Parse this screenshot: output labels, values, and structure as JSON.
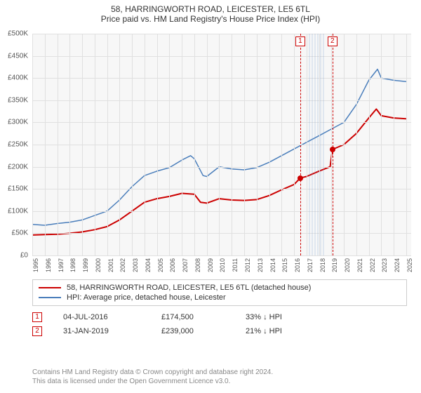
{
  "title": "58, HARRINGWORTH ROAD, LEICESTER, LE5 6TL",
  "subtitle": "Price paid vs. HM Land Registry's House Price Index (HPI)",
  "chart": {
    "type": "line",
    "background_color": "#f7f7f7",
    "grid_color": "#e0e0e0",
    "y": {
      "min": 0,
      "max": 500000,
      "tick_step": 50000,
      "tick_format_prefix": "£",
      "tick_format_suffix": "K",
      "ticks": [
        "£0",
        "£50K",
        "£100K",
        "£150K",
        "£200K",
        "£250K",
        "£300K",
        "£350K",
        "£400K",
        "£450K",
        "£500K"
      ]
    },
    "x": {
      "years": [
        1995,
        1996,
        1997,
        1998,
        1999,
        2000,
        2001,
        2002,
        2003,
        2004,
        2005,
        2006,
        2007,
        2008,
        2009,
        2010,
        2011,
        2012,
        2013,
        2014,
        2015,
        2016,
        2017,
        2018,
        2019,
        2020,
        2021,
        2022,
        2023,
        2024,
        2025
      ],
      "min": 1995,
      "max": 2025.4
    },
    "hatch_band": {
      "x_start": 2017.2,
      "x_end": 2018.5,
      "color": "rgba(120,160,210,0.18)"
    },
    "series": [
      {
        "name": "property",
        "label": "58, HARRINGWORTH ROAD, LEICESTER, LE5 6TL (detached house)",
        "color": "#cc0000",
        "line_width": 2,
        "points": [
          [
            1995,
            46000
          ],
          [
            1996,
            47000
          ],
          [
            1997,
            48000
          ],
          [
            1998,
            50000
          ],
          [
            1999,
            53000
          ],
          [
            2000,
            58000
          ],
          [
            2001,
            65000
          ],
          [
            2002,
            80000
          ],
          [
            2003,
            100000
          ],
          [
            2004,
            120000
          ],
          [
            2005,
            128000
          ],
          [
            2006,
            133000
          ],
          [
            2007,
            140000
          ],
          [
            2008,
            138000
          ],
          [
            2008.5,
            120000
          ],
          [
            2009,
            118000
          ],
          [
            2010,
            128000
          ],
          [
            2011,
            125000
          ],
          [
            2012,
            124000
          ],
          [
            2013,
            126000
          ],
          [
            2014,
            135000
          ],
          [
            2015,
            148000
          ],
          [
            2016,
            160000
          ],
          [
            2016.5,
            174500
          ],
          [
            2017,
            178000
          ],
          [
            2018,
            190000
          ],
          [
            2018.9,
            200000
          ],
          [
            2019.08,
            239000
          ],
          [
            2020,
            250000
          ],
          [
            2021,
            275000
          ],
          [
            2022,
            310000
          ],
          [
            2022.6,
            330000
          ],
          [
            2023,
            315000
          ],
          [
            2024,
            310000
          ],
          [
            2025,
            308000
          ]
        ]
      },
      {
        "name": "hpi",
        "label": "HPI: Average price, detached house, Leicester",
        "color": "#4a7ebb",
        "line_width": 1.5,
        "points": [
          [
            1995,
            70000
          ],
          [
            1996,
            68000
          ],
          [
            1997,
            72000
          ],
          [
            1998,
            75000
          ],
          [
            1999,
            80000
          ],
          [
            2000,
            90000
          ],
          [
            2001,
            100000
          ],
          [
            2002,
            125000
          ],
          [
            2003,
            155000
          ],
          [
            2004,
            180000
          ],
          [
            2005,
            190000
          ],
          [
            2006,
            198000
          ],
          [
            2007,
            215000
          ],
          [
            2007.7,
            225000
          ],
          [
            2008,
            218000
          ],
          [
            2008.7,
            180000
          ],
          [
            2009,
            178000
          ],
          [
            2010,
            200000
          ],
          [
            2011,
            195000
          ],
          [
            2012,
            193000
          ],
          [
            2013,
            198000
          ],
          [
            2014,
            210000
          ],
          [
            2015,
            225000
          ],
          [
            2016,
            240000
          ],
          [
            2017,
            255000
          ],
          [
            2018,
            270000
          ],
          [
            2019,
            285000
          ],
          [
            2020,
            300000
          ],
          [
            2021,
            340000
          ],
          [
            2022,
            395000
          ],
          [
            2022.7,
            420000
          ],
          [
            2023,
            400000
          ],
          [
            2024,
            395000
          ],
          [
            2025,
            392000
          ]
        ]
      }
    ],
    "markers": [
      {
        "x": 2016.5,
        "y": 174500,
        "color": "#cc0000"
      },
      {
        "x": 2019.08,
        "y": 239000,
        "color": "#cc0000"
      }
    ],
    "event_lines": [
      {
        "n": "1",
        "x": 2016.5,
        "color": "#cc0000"
      },
      {
        "n": "2",
        "x": 2019.08,
        "color": "#cc0000"
      }
    ]
  },
  "legend": {
    "rows": [
      {
        "color": "#cc0000",
        "label": "58, HARRINGWORTH ROAD, LEICESTER, LE5 6TL (detached house)"
      },
      {
        "color": "#4a7ebb",
        "label": "HPI: Average price, detached house, Leicester"
      }
    ]
  },
  "events_table": [
    {
      "n": "1",
      "color": "#cc0000",
      "date": "04-JUL-2016",
      "price": "£174,500",
      "pct": "33% ↓ HPI"
    },
    {
      "n": "2",
      "color": "#cc0000",
      "date": "31-JAN-2019",
      "price": "£239,000",
      "pct": "21% ↓ HPI"
    }
  ],
  "footer": {
    "line1": "Contains HM Land Registry data © Crown copyright and database right 2024.",
    "line2": "This data is licensed under the Open Government Licence v3.0."
  }
}
